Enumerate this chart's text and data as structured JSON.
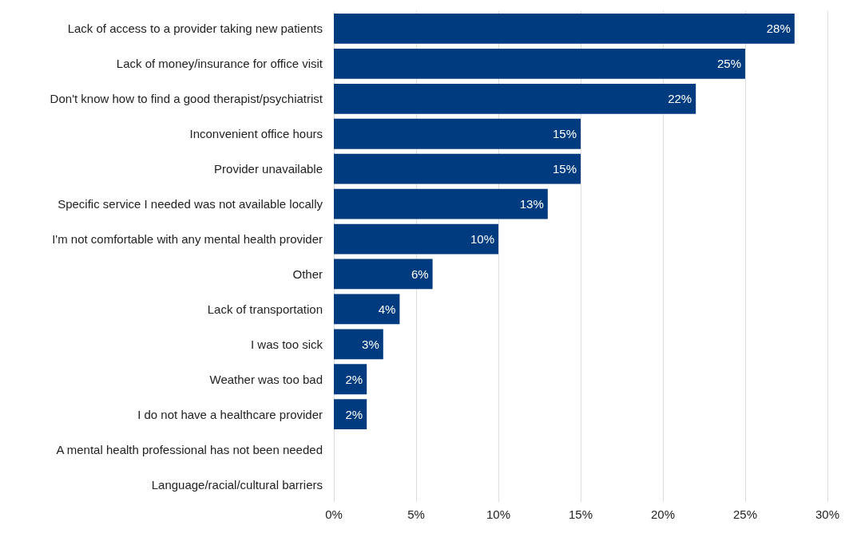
{
  "chart_data": {
    "type": "bar",
    "orientation": "horizontal",
    "categories": [
      "Lack of access to a provider taking new patients",
      "Lack of money/insurance for office visit",
      "Don't know how to find a good therapist/psychiatrist",
      "Inconvenient office hours",
      "Provider unavailable",
      "Specific service I needed was not available locally",
      "I'm not comfortable with any mental health provider",
      "Other",
      "Lack of transportation",
      "I was too sick",
      "Weather was too bad",
      "I do not have a healthcare provider",
      "A mental health professional has not been needed",
      "Language/racial/cultural barriers"
    ],
    "values": [
      28,
      25,
      22,
      15,
      15,
      13,
      10,
      6,
      4,
      3,
      2,
      2,
      0,
      0
    ],
    "value_labels": [
      "28%",
      "25%",
      "22%",
      "15%",
      "15%",
      "13%",
      "10%",
      "6%",
      "4%",
      "3%",
      "2%",
      "2%",
      null,
      null
    ],
    "color": "#003b7f",
    "xlim": [
      0,
      30
    ],
    "xticks": [
      {
        "value": 0,
        "label": "0%"
      },
      {
        "value": 5,
        "label": "5%"
      },
      {
        "value": 10,
        "label": "10%"
      },
      {
        "value": 15,
        "label": "15%"
      },
      {
        "value": 20,
        "label": "20%"
      },
      {
        "value": 25,
        "label": "25%"
      },
      {
        "value": 30,
        "label": "30%"
      }
    ],
    "grid": "x"
  }
}
